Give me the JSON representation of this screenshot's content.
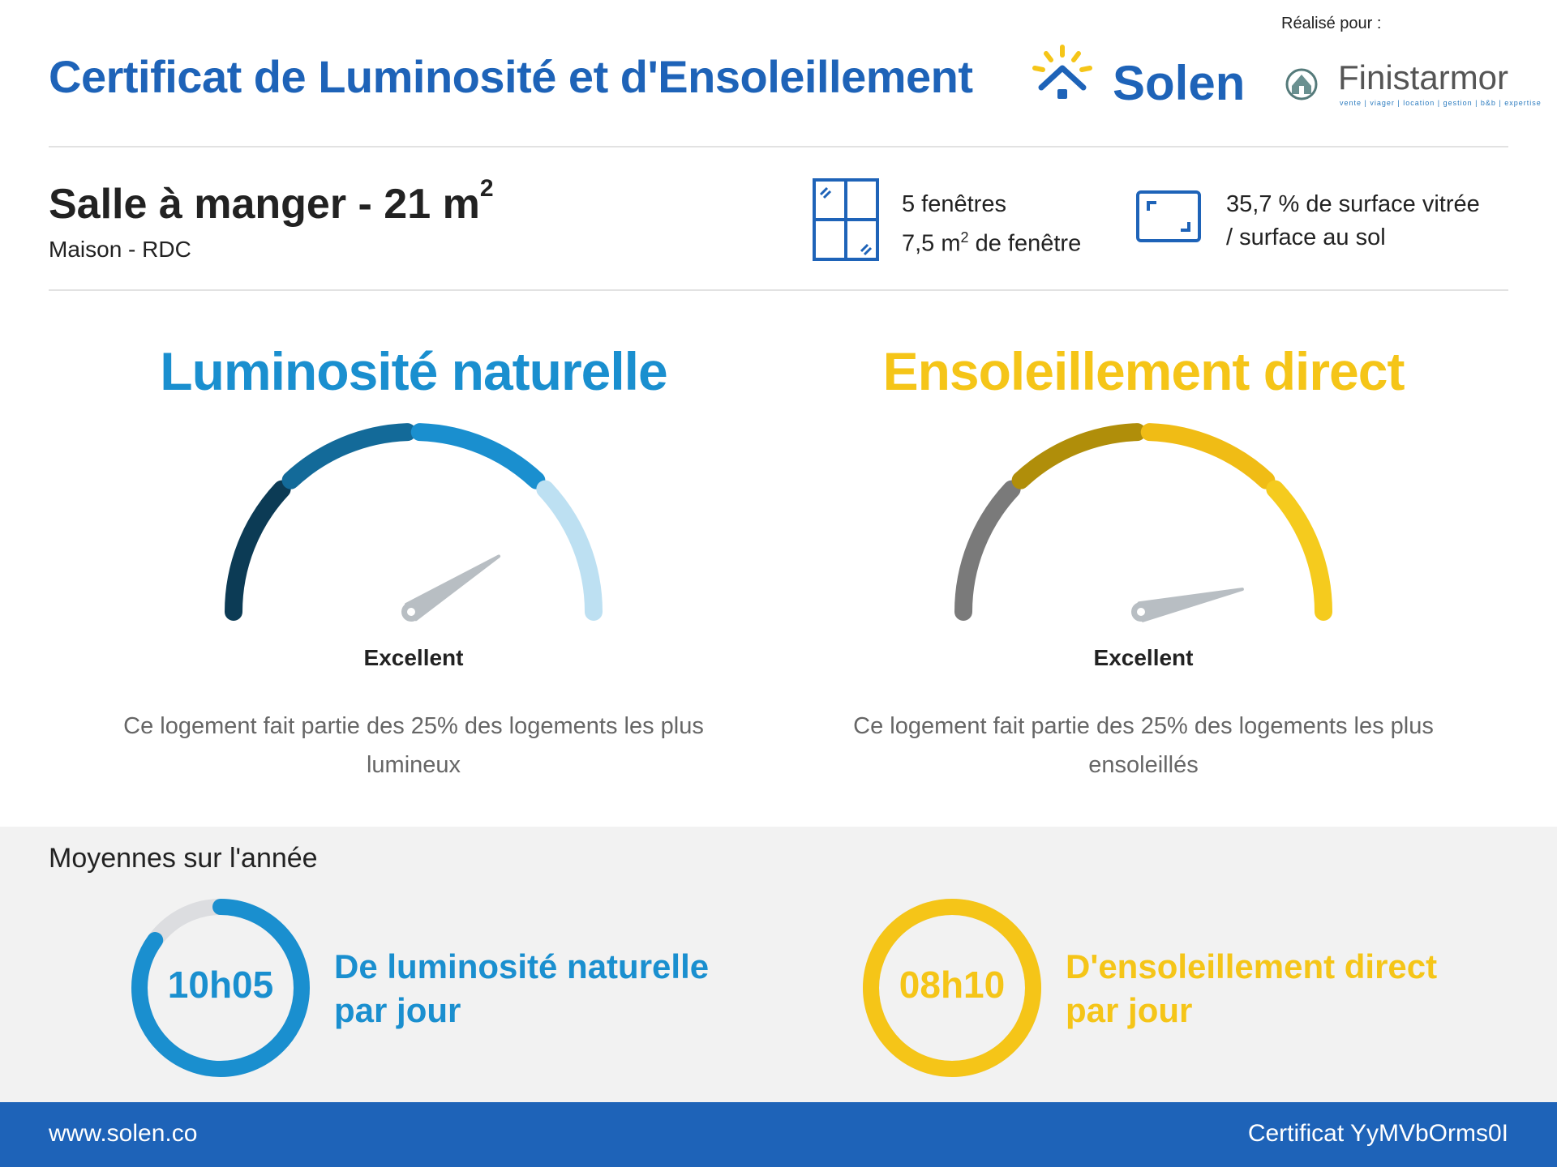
{
  "header": {
    "title": "Certificat de Luminosité et d'Ensoleillement",
    "brand": "Solen",
    "realise_label": "Réalisé pour :",
    "partner_name": "Finistarmor",
    "partner_tagline": "vente | viager | location | gestion | b&b | expertise"
  },
  "room": {
    "title": "Salle à manger - 21 m",
    "title_sup": "2",
    "subtitle": "Maison - RDC"
  },
  "windows": {
    "count_text": "5 fenêtres",
    "area_text_pre": "7,5 m",
    "area_sup": "2",
    "area_text_post": " de fenêtre",
    "icon": "window-icon"
  },
  "surface": {
    "line1": "35,7 % de surface vitrée",
    "line2": "/ surface au sol",
    "icon": "surface-icon"
  },
  "luminosite": {
    "title": "Luminosité naturelle",
    "rating": "Excellent",
    "description": "Ce logement fait partie des 25% des logements les plus lumineux",
    "level": 0.82,
    "color": "#1a8fcf",
    "segment_colors": [
      "#0c3b55",
      "#136a99",
      "#1a8fcf",
      "#bde0f2"
    ]
  },
  "ensoleillement": {
    "title": "Ensoleillement direct",
    "rating": "Excellent",
    "description": "Ce logement fait partie des 25% des logements les plus ensoleillés",
    "level": 0.93,
    "color": "#f5c518",
    "segment_colors": [
      "#7a7a7a",
      "#b08e0a",
      "#f0bc15",
      "#f5cb1e"
    ]
  },
  "averages": {
    "title": "Moyennes sur l'année",
    "lum": {
      "value": "10h05",
      "label_line1": "De luminosité naturelle",
      "label_line2": "par jour",
      "fill": 0.85,
      "color": "#1a8fcf"
    },
    "sun": {
      "value": "08h10",
      "label_line1": "D'ensoleillement direct",
      "label_line2": "par jour",
      "fill": 1.0,
      "color": "#f5c518"
    }
  },
  "footer": {
    "website": "www.solen.co",
    "certificate": "Certificat YyMVbOrms0I"
  }
}
